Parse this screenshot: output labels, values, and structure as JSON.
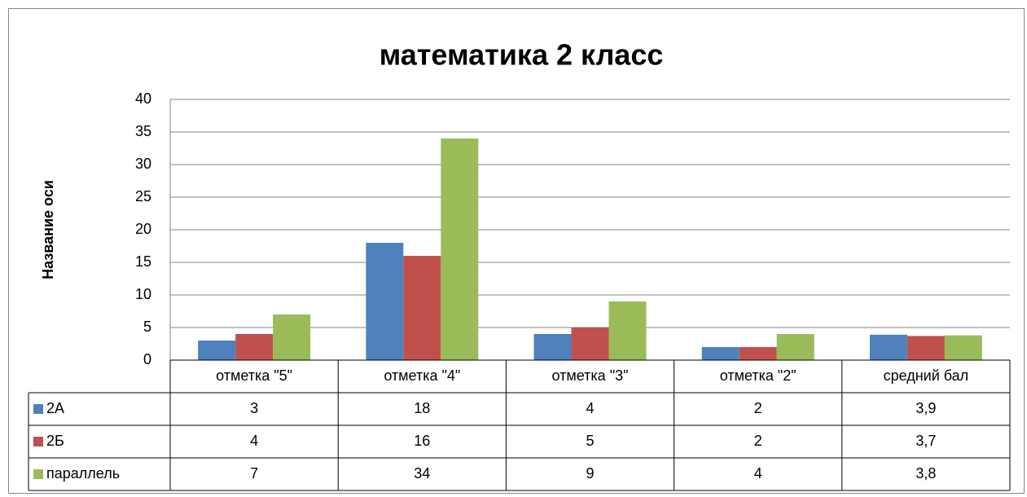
{
  "chart_data": {
    "type": "bar",
    "title": "математика 2 класс",
    "y_label": "Название оси",
    "categories": [
      "отметка \"5\"",
      "отметка \"4\"",
      "отметка \"3\"",
      "отметка \"2\"",
      "средний бал"
    ],
    "series": [
      {
        "name": "2А",
        "color": "#4f81bd",
        "values": [
          3,
          18,
          4,
          2,
          3.9
        ],
        "value_labels": [
          "3",
          "18",
          "4",
          "2",
          "3,9"
        ]
      },
      {
        "name": "2Б",
        "color": "#c0504d",
        "values": [
          4,
          16,
          5,
          2,
          3.7
        ],
        "value_labels": [
          "4",
          "16",
          "5",
          "2",
          "3,7"
        ]
      },
      {
        "name": "параллель",
        "color": "#9bbb59",
        "values": [
          7,
          34,
          9,
          4,
          3.8
        ],
        "value_labels": [
          "7",
          "34",
          "9",
          "4",
          "3,8"
        ]
      }
    ],
    "ylim": [
      0,
      40
    ],
    "yticks": [
      0,
      5,
      10,
      15,
      20,
      25,
      30,
      35,
      40
    ],
    "grid": true,
    "data_table": true
  }
}
